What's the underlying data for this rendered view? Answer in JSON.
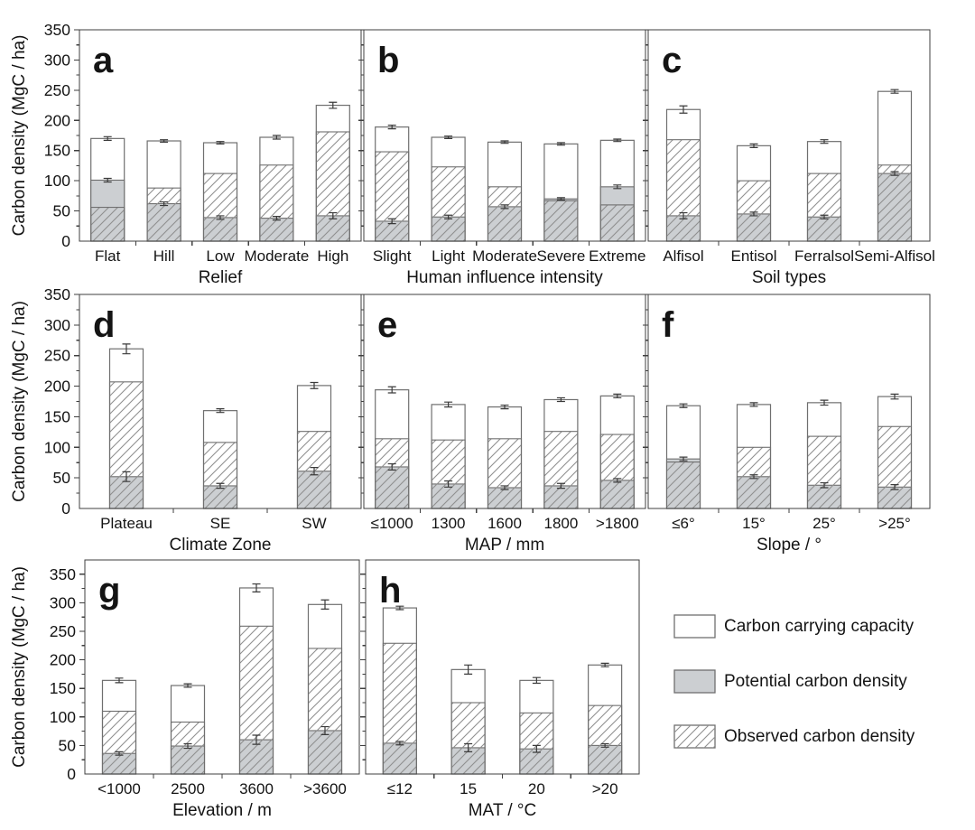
{
  "figure": {
    "y_axis_title": "Carbon density (MgC / ha)",
    "y_ticks": [
      0,
      50,
      100,
      150,
      200,
      250,
      300,
      350
    ],
    "legend": [
      {
        "label": "Carbon carrying capacity",
        "style": "white"
      },
      {
        "label": "Potential carbon density",
        "style": "gray"
      },
      {
        "label": "Observed carbon density",
        "style": "hatch"
      }
    ],
    "colors": {
      "background": "#ffffff",
      "frame": "#3f3f3f",
      "bar_outline": "#6f6f6f",
      "potential_fill": "#cccfd2",
      "hatch_line": "#8f8f8f",
      "error_bar": "#3a3a3a",
      "text": "#141414"
    }
  },
  "chart_data": [
    {
      "panel": "a",
      "type": "bar",
      "xlabel": "Relief",
      "ylabel": "Carbon density (MgC / ha)",
      "ylim": [
        0,
        350
      ],
      "categories": [
        "Flat",
        "Hill",
        "Low",
        "Moderate",
        "High"
      ],
      "series": [
        {
          "name": "Carbon carrying capacity",
          "values": [
            170,
            166,
            163,
            172,
            225
          ],
          "errors": [
            3,
            2,
            2,
            3,
            5
          ]
        },
        {
          "name": "Potential carbon density",
          "values": [
            101,
            62,
            39,
            38,
            42
          ],
          "errors": [
            3,
            3,
            3,
            3,
            5
          ]
        },
        {
          "name": "Observed carbon density",
          "values": [
            56,
            88,
            112,
            126,
            181
          ]
        }
      ]
    },
    {
      "panel": "b",
      "type": "bar",
      "xlabel": "Human influence intensity",
      "ylim": [
        0,
        350
      ],
      "categories": [
        "Slight",
        "Light",
        "Moderate",
        "Severe",
        "Extreme"
      ],
      "series": [
        {
          "name": "Carbon carrying capacity",
          "values": [
            189,
            172,
            164,
            161,
            167
          ],
          "errors": [
            3,
            2,
            2,
            2,
            2
          ]
        },
        {
          "name": "Potential carbon density",
          "values": [
            33,
            40,
            57,
            70,
            90
          ],
          "errors": [
            4,
            3,
            3,
            2,
            3
          ]
        },
        {
          "name": "Observed carbon density",
          "values": [
            148,
            123,
            90,
            67,
            60
          ]
        }
      ]
    },
    {
      "panel": "c",
      "type": "bar",
      "xlabel": "Soil types",
      "ylim": [
        0,
        350
      ],
      "categories": [
        "Alfisol",
        "Entisol",
        "Ferralsol",
        "Semi-Alfisol"
      ],
      "series": [
        {
          "name": "Carbon carrying capacity",
          "values": [
            218,
            158,
            165,
            248
          ],
          "errors": [
            6,
            3,
            3,
            3
          ]
        },
        {
          "name": "Potential carbon density",
          "values": [
            42,
            45,
            40,
            112
          ],
          "errors": [
            5,
            3,
            3,
            3
          ]
        },
        {
          "name": "Observed carbon density",
          "values": [
            168,
            100,
            112,
            126
          ]
        }
      ]
    },
    {
      "panel": "d",
      "type": "bar",
      "xlabel": "Climate Zone",
      "ylabel": "Carbon density (MgC / ha)",
      "ylim": [
        0,
        350
      ],
      "categories": [
        "Plateau",
        "SE",
        "SW"
      ],
      "series": [
        {
          "name": "Carbon carrying capacity",
          "values": [
            261,
            160,
            201
          ],
          "errors": [
            8,
            3,
            5
          ]
        },
        {
          "name": "Potential carbon density",
          "values": [
            52,
            37,
            61
          ],
          "errors": [
            8,
            4,
            6
          ]
        },
        {
          "name": "Observed carbon density",
          "values": [
            207,
            108,
            126
          ]
        }
      ]
    },
    {
      "panel": "e",
      "type": "bar",
      "xlabel": "MAP / mm",
      "ylim": [
        0,
        350
      ],
      "categories": [
        "≤1000",
        "1300",
        "1600",
        "1800",
        ">1800"
      ],
      "series": [
        {
          "name": "Carbon carrying capacity",
          "values": [
            194,
            170,
            166,
            178,
            184
          ],
          "errors": [
            5,
            4,
            3,
            3,
            3
          ]
        },
        {
          "name": "Potential carbon density",
          "values": [
            68,
            40,
            34,
            37,
            46
          ],
          "errors": [
            5,
            5,
            3,
            4,
            3
          ]
        },
        {
          "name": "Observed carbon density",
          "values": [
            114,
            112,
            114,
            126,
            121
          ]
        }
      ]
    },
    {
      "panel": "f",
      "type": "bar",
      "xlabel": "Slope / °",
      "ylim": [
        0,
        350
      ],
      "categories": [
        "≤6°",
        "15°",
        "25°",
        ">25°"
      ],
      "series": [
        {
          "name": "Carbon carrying capacity",
          "values": [
            168,
            170,
            173,
            183
          ],
          "errors": [
            3,
            3,
            4,
            4
          ]
        },
        {
          "name": "Potential carbon density",
          "values": [
            81,
            52,
            38,
            35
          ],
          "errors": [
            3,
            3,
            4,
            4
          ]
        },
        {
          "name": "Observed carbon density",
          "values": [
            76,
            100,
            118,
            134
          ]
        }
      ]
    },
    {
      "panel": "g",
      "type": "bar",
      "xlabel": "Elevation / m",
      "ylabel": "Carbon density (MgC / ha)",
      "ylim": [
        0,
        375
      ],
      "categories": [
        "<1000",
        "2500",
        "3600",
        ">3600"
      ],
      "series": [
        {
          "name": "Carbon carrying capacity",
          "values": [
            164,
            155,
            326,
            297
          ],
          "errors": [
            4,
            3,
            7,
            8
          ]
        },
        {
          "name": "Potential carbon density",
          "values": [
            36,
            49,
            60,
            76
          ],
          "errors": [
            3,
            4,
            8,
            7
          ]
        },
        {
          "name": "Observed carbon density",
          "values": [
            110,
            91,
            259,
            220
          ]
        }
      ]
    },
    {
      "panel": "h",
      "type": "bar",
      "xlabel": "MAT / °C",
      "ylim": [
        0,
        375
      ],
      "categories": [
        "≤12",
        "15",
        "20",
        ">20"
      ],
      "series": [
        {
          "name": "Carbon carrying capacity",
          "values": [
            291,
            183,
            164,
            191
          ],
          "errors": [
            3,
            8,
            5,
            3
          ]
        },
        {
          "name": "Potential carbon density",
          "values": [
            54,
            46,
            44,
            50
          ],
          "errors": [
            3,
            7,
            6,
            3
          ]
        },
        {
          "name": "Observed carbon density",
          "values": [
            229,
            125,
            107,
            120
          ]
        }
      ]
    }
  ]
}
